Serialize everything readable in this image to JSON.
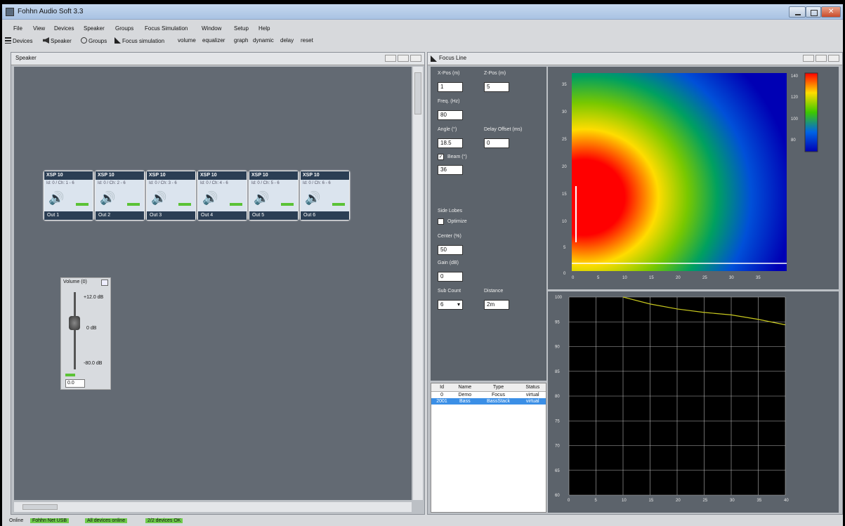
{
  "window": {
    "title": "Fohhn Audio Soft 3.3"
  },
  "menu": [
    "File",
    "View",
    "Devices",
    "Speaker",
    "Groups",
    "Focus Simulation",
    "Window",
    "Setup",
    "Help"
  ],
  "toolbar": {
    "devices": "Devices",
    "speaker": "Speaker",
    "groups": "Groups",
    "focus": "Focus simulation",
    "volume": "volume",
    "equalizer": "equalizer",
    "graph": "graph",
    "dynamic": "dynamic",
    "delay": "delay",
    "reset": "reset"
  },
  "speaker_panel": {
    "title": "Speaker",
    "cards": [
      {
        "title": "XSP 10",
        "info": "Id: 0 / Ch: 1 - 6",
        "out": "Out 1"
      },
      {
        "title": "XSP 10",
        "info": "Id: 0 / Ch: 2 - 6",
        "out": "Out 2"
      },
      {
        "title": "XSP 10",
        "info": "Id: 0 / Ch: 3 - 6",
        "out": "Out 3"
      },
      {
        "title": "XSP 10",
        "info": "Id: 0 / Ch: 4 - 6",
        "out": "Out 4"
      },
      {
        "title": "XSP 10",
        "info": "Id: 0 / Ch: 5 - 6",
        "out": "Out 5"
      },
      {
        "title": "XSP 10",
        "info": "Id: 0 / Ch: 6 - 6",
        "out": "Out 6"
      }
    ],
    "volume": {
      "title": "Volume (0)",
      "max": "+12.0 dB",
      "mid": "0 dB",
      "min": "-80.0 dB",
      "value": "0.0",
      "level": 0.6
    }
  },
  "focus_panel": {
    "title": "Focus Line",
    "xpos_label": "X-Pos (m)",
    "xpos_value": "1",
    "zpos_label": "Z-Pos (m)",
    "zpos_value": "5",
    "freq_label": "Freq. (Hz)",
    "freq_value": "80",
    "angle_label": "Angle (°)",
    "angle_value": "18.5",
    "delay_label": "Delay Offset (ms)",
    "delay_value": "0",
    "beam_label": "Beam (°)",
    "beam_value": "36",
    "side_lobes_label": "Side Lobes",
    "optimize_label": "Optimize",
    "center_label": "Center (%)",
    "center_value": "50",
    "gain_label": "Gain (dB)",
    "gain_value": "0",
    "sub_count_label": "Sub Count",
    "sub_count_value": "6",
    "distance_label": "Distance",
    "distance_value": "2m"
  },
  "device_table": {
    "headers": [
      "Id",
      "Name",
      "Type",
      "Status"
    ],
    "rows": [
      {
        "id": "0",
        "name": "Demo",
        "type": "Focus",
        "status": "virtual"
      },
      {
        "id": "2001",
        "name": "Bass",
        "type": "BassStack",
        "status": "virtual"
      }
    ]
  },
  "heatmap": {
    "y_ticks": [
      "0",
      "5",
      "10",
      "15",
      "20",
      "25",
      "30",
      "35"
    ],
    "x_ticks": [
      "0",
      "5",
      "10",
      "15",
      "20",
      "25",
      "30",
      "35"
    ],
    "colorbar_ticks": [
      "140",
      "120",
      "100",
      "80"
    ]
  },
  "chart_data": {
    "type": "line",
    "x": [
      10,
      15,
      20,
      25,
      30,
      35,
      40
    ],
    "values": [
      100,
      98.6,
      97.6,
      96.9,
      96.4,
      95.5,
      94.4
    ],
    "xlim": [
      0,
      40
    ],
    "ylim": [
      60,
      100
    ],
    "x_ticks": [
      "0",
      "5",
      "10",
      "15",
      "20",
      "25",
      "30",
      "35",
      "40"
    ],
    "y_ticks": [
      "100",
      "95",
      "90",
      "85",
      "80",
      "75",
      "70",
      "65",
      "60"
    ],
    "color": "#c8c81e",
    "grid": true
  },
  "status": {
    "state": "Online",
    "port": "Fohhn Net USB",
    "devices": "All devices online",
    "device_ok": "2/2 devices OK"
  }
}
